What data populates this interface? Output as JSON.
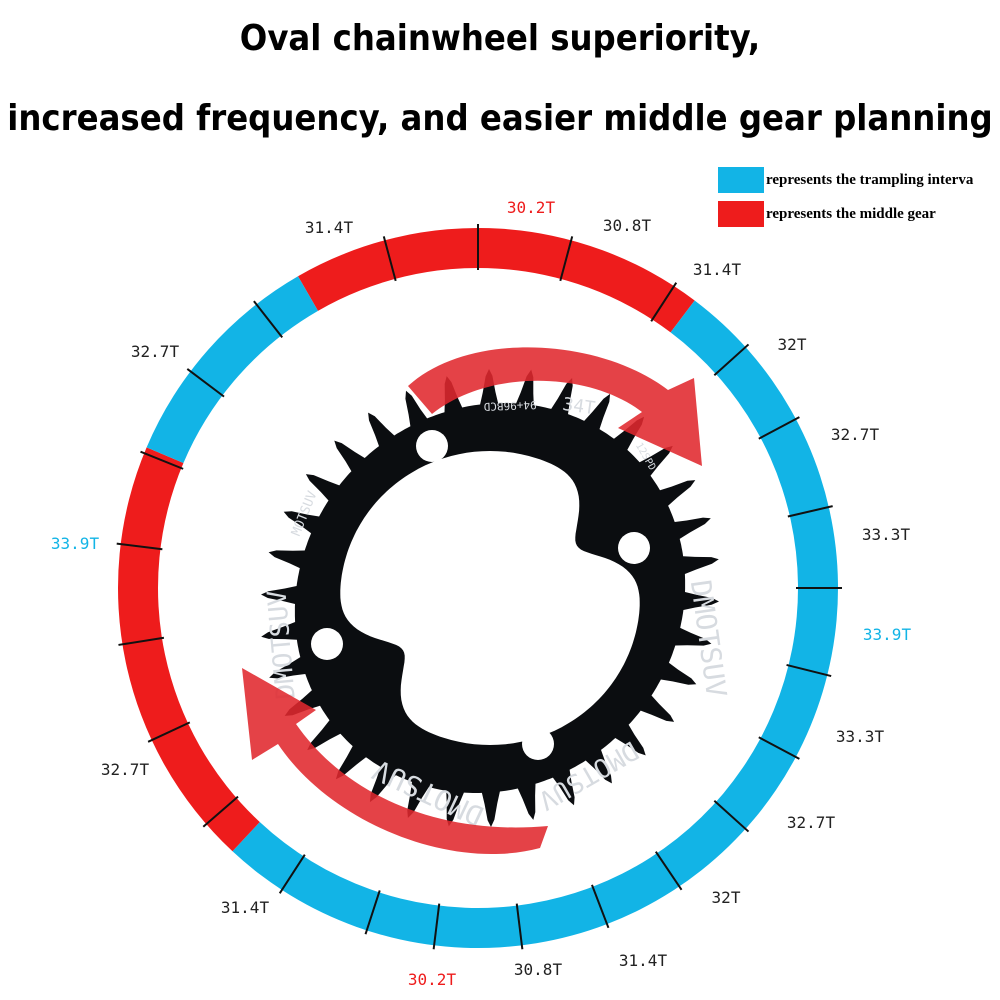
{
  "title_line1": "Oval chainwheel superiority,",
  "title_line2": "increased frequency, and easier middle gear planning",
  "legend": [
    {
      "label": "represents the trampling interva",
      "color": "#12b4e6"
    },
    {
      "label": "represents the middle gear",
      "color": "#ee1c1c"
    }
  ],
  "colors": {
    "blue": "#12b4e6",
    "red": "#ee1c1c",
    "chainring": "#0b0d10",
    "arrow": "#e0282e"
  },
  "ring_segments": [
    {
      "zone": "middle-gear",
      "color": "red"
    },
    {
      "zone": "trampling",
      "color": "blue"
    },
    {
      "zone": "middle-gear",
      "color": "red"
    },
    {
      "zone": "trampling",
      "color": "blue"
    }
  ],
  "labels": [
    {
      "text": "30.2T",
      "color": "red"
    },
    {
      "text": "30.8T",
      "color": "black"
    },
    {
      "text": "31.4T",
      "color": "black"
    },
    {
      "text": "32T",
      "color": "black"
    },
    {
      "text": "32.7T",
      "color": "black"
    },
    {
      "text": "33.3T",
      "color": "black"
    },
    {
      "text": "33.9T",
      "color": "blue"
    },
    {
      "text": "33.3T",
      "color": "black"
    },
    {
      "text": "32.7T",
      "color": "black"
    },
    {
      "text": "32T",
      "color": "black"
    },
    {
      "text": "31.4T",
      "color": "black"
    },
    {
      "text": "30.8T",
      "color": "black"
    },
    {
      "text": "30.2T",
      "color": "red"
    },
    {
      "text": "31.4T",
      "color": "black"
    },
    {
      "text": "32.7T",
      "color": "black"
    },
    {
      "text": "33.9T",
      "color": "blue"
    },
    {
      "text": "32.7T",
      "color": "black"
    },
    {
      "text": "31.4T",
      "color": "black"
    }
  ],
  "chainring": {
    "teeth": "34T",
    "bcd": "94+96BCD",
    "speed": "12SPD",
    "brand": "MOTSUV",
    "pattern_text": "DMOTSUV"
  }
}
